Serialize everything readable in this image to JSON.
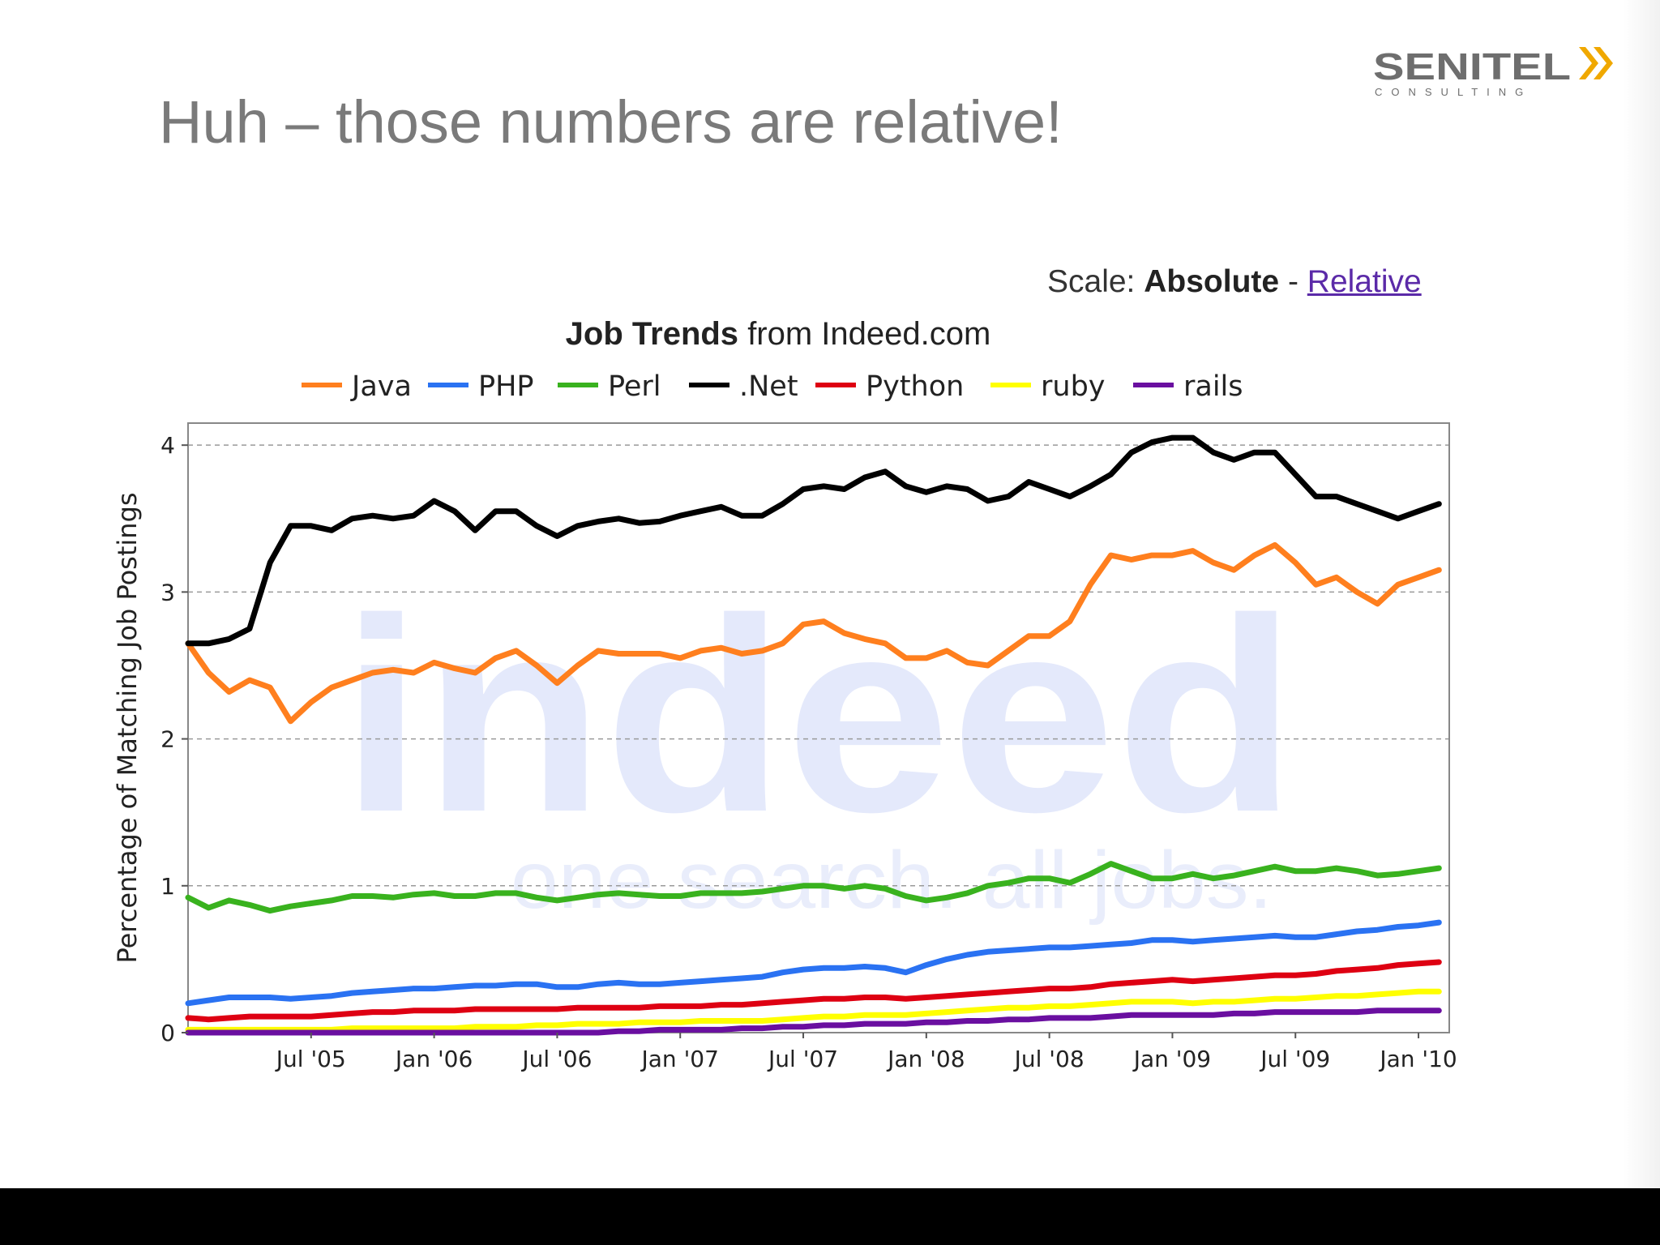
{
  "slide": {
    "title": "Huh – those numbers are relative!",
    "logo": {
      "name": "SENITEL",
      "tagline": "CONSULTING",
      "accent_color": "#f0a800",
      "text_color": "#6e6e6e"
    }
  },
  "scale": {
    "label": "Scale:",
    "absolute": "Absolute",
    "separator": "-",
    "relative": "Relative"
  },
  "chart_header": {
    "title_bold": "Job Trends",
    "title_rest": "from Indeed.com"
  },
  "watermark": {
    "brand": "indeed",
    "tagline": "one search. all jobs."
  },
  "chart_data": {
    "type": "line",
    "title": "Job Trends from Indeed.com",
    "xlabel": "",
    "ylabel": "Percentage of Matching Job Postings",
    "ylim": [
      0,
      4.15
    ],
    "yticks": [
      0,
      1,
      2,
      3,
      4
    ],
    "grid": "horizontal dashed",
    "legend_position": "top",
    "x_start": "Jan '05",
    "x_end": "Feb '10",
    "x_tick_labels": [
      "Jul '05",
      "Jan '06",
      "Jul '06",
      "Jan '07",
      "Jul '07",
      "Jan '08",
      "Jul '08",
      "Jan '09",
      "Jul '09",
      "Jan '10"
    ],
    "x_tick_months": [
      6,
      12,
      18,
      24,
      30,
      36,
      42,
      48,
      54,
      60
    ],
    "months": [
      0,
      1,
      2,
      3,
      4,
      5,
      6,
      7,
      8,
      9,
      10,
      11,
      12,
      13,
      14,
      15,
      16,
      17,
      18,
      19,
      20,
      21,
      22,
      23,
      24,
      25,
      26,
      27,
      28,
      29,
      30,
      31,
      32,
      33,
      34,
      35,
      36,
      37,
      38,
      39,
      40,
      41,
      42,
      43,
      44,
      45,
      46,
      47,
      48,
      49,
      50,
      51,
      52,
      53,
      54,
      55,
      56,
      57,
      58,
      59,
      60,
      61
    ],
    "series": [
      {
        "name": "Java",
        "color": "#ff7f1e",
        "values": [
          2.65,
          2.45,
          2.32,
          2.4,
          2.35,
          2.12,
          2.25,
          2.35,
          2.4,
          2.45,
          2.47,
          2.45,
          2.52,
          2.48,
          2.45,
          2.55,
          2.6,
          2.5,
          2.38,
          2.5,
          2.6,
          2.58,
          2.58,
          2.58,
          2.55,
          2.6,
          2.62,
          2.58,
          2.6,
          2.65,
          2.78,
          2.8,
          2.72,
          2.68,
          2.65,
          2.55,
          2.55,
          2.6,
          2.52,
          2.5,
          2.6,
          2.7,
          2.7,
          2.8,
          3.05,
          3.25,
          3.22,
          3.25,
          3.25,
          3.28,
          3.2,
          3.15,
          3.25,
          3.32,
          3.2,
          3.05,
          3.1,
          3.0,
          2.92,
          3.05,
          3.1,
          3.15
        ]
      },
      {
        "name": "PHP",
        "color": "#2a72f2",
        "values": [
          0.2,
          0.22,
          0.24,
          0.24,
          0.24,
          0.23,
          0.24,
          0.25,
          0.27,
          0.28,
          0.29,
          0.3,
          0.3,
          0.31,
          0.32,
          0.32,
          0.33,
          0.33,
          0.31,
          0.31,
          0.33,
          0.34,
          0.33,
          0.33,
          0.34,
          0.35,
          0.36,
          0.37,
          0.38,
          0.41,
          0.43,
          0.44,
          0.44,
          0.45,
          0.44,
          0.41,
          0.46,
          0.5,
          0.53,
          0.55,
          0.56,
          0.57,
          0.58,
          0.58,
          0.59,
          0.6,
          0.61,
          0.63,
          0.63,
          0.62,
          0.63,
          0.64,
          0.65,
          0.66,
          0.65,
          0.65,
          0.67,
          0.69,
          0.7,
          0.72,
          0.73,
          0.75
        ]
      },
      {
        "name": "Perl",
        "color": "#39b21e",
        "values": [
          0.92,
          0.85,
          0.9,
          0.87,
          0.83,
          0.86,
          0.88,
          0.9,
          0.93,
          0.93,
          0.92,
          0.94,
          0.95,
          0.93,
          0.93,
          0.95,
          0.95,
          0.92,
          0.9,
          0.92,
          0.94,
          0.95,
          0.94,
          0.93,
          0.93,
          0.95,
          0.95,
          0.95,
          0.96,
          0.98,
          1.0,
          1.0,
          0.98,
          1.0,
          0.98,
          0.93,
          0.9,
          0.92,
          0.95,
          1.0,
          1.02,
          1.05,
          1.05,
          1.02,
          1.08,
          1.15,
          1.1,
          1.05,
          1.05,
          1.08,
          1.05,
          1.07,
          1.1,
          1.13,
          1.1,
          1.1,
          1.12,
          1.1,
          1.07,
          1.08,
          1.1,
          1.12
        ]
      },
      {
        "name": ".Net",
        "color": "#000000",
        "values": [
          2.65,
          2.65,
          2.68,
          2.75,
          3.2,
          3.45,
          3.45,
          3.42,
          3.5,
          3.52,
          3.5,
          3.52,
          3.62,
          3.55,
          3.42,
          3.55,
          3.55,
          3.45,
          3.38,
          3.45,
          3.48,
          3.5,
          3.47,
          3.48,
          3.52,
          3.55,
          3.58,
          3.52,
          3.52,
          3.6,
          3.7,
          3.72,
          3.7,
          3.78,
          3.82,
          3.72,
          3.68,
          3.72,
          3.7,
          3.62,
          3.65,
          3.75,
          3.7,
          3.65,
          3.72,
          3.8,
          3.95,
          4.02,
          4.05,
          4.05,
          3.95,
          3.9,
          3.95,
          3.95,
          3.8,
          3.65,
          3.65,
          3.6,
          3.55,
          3.5,
          3.55,
          3.6
        ]
      },
      {
        "name": "Python",
        "color": "#de0012",
        "values": [
          0.1,
          0.09,
          0.1,
          0.11,
          0.11,
          0.11,
          0.11,
          0.12,
          0.13,
          0.14,
          0.14,
          0.15,
          0.15,
          0.15,
          0.16,
          0.16,
          0.16,
          0.16,
          0.16,
          0.17,
          0.17,
          0.17,
          0.17,
          0.18,
          0.18,
          0.18,
          0.19,
          0.19,
          0.2,
          0.21,
          0.22,
          0.23,
          0.23,
          0.24,
          0.24,
          0.23,
          0.24,
          0.25,
          0.26,
          0.27,
          0.28,
          0.29,
          0.3,
          0.3,
          0.31,
          0.33,
          0.34,
          0.35,
          0.36,
          0.35,
          0.36,
          0.37,
          0.38,
          0.39,
          0.39,
          0.4,
          0.42,
          0.43,
          0.44,
          0.46,
          0.47,
          0.48
        ]
      },
      {
        "name": "ruby",
        "color": "#ffff00",
        "values": [
          0.02,
          0.02,
          0.02,
          0.02,
          0.02,
          0.02,
          0.02,
          0.02,
          0.03,
          0.03,
          0.03,
          0.03,
          0.03,
          0.03,
          0.04,
          0.04,
          0.04,
          0.05,
          0.05,
          0.06,
          0.06,
          0.06,
          0.07,
          0.07,
          0.07,
          0.08,
          0.08,
          0.08,
          0.08,
          0.09,
          0.1,
          0.11,
          0.11,
          0.12,
          0.12,
          0.12,
          0.13,
          0.14,
          0.15,
          0.16,
          0.17,
          0.17,
          0.18,
          0.18,
          0.19,
          0.2,
          0.21,
          0.21,
          0.21,
          0.2,
          0.21,
          0.21,
          0.22,
          0.23,
          0.23,
          0.24,
          0.25,
          0.25,
          0.26,
          0.27,
          0.28,
          0.28
        ]
      },
      {
        "name": "rails",
        "color": "#6a0fa0",
        "values": [
          0.0,
          0.0,
          0.0,
          0.0,
          0.0,
          0.0,
          0.0,
          0.0,
          0.0,
          0.0,
          0.0,
          0.0,
          0.0,
          0.0,
          0.0,
          0.0,
          0.0,
          0.0,
          0.0,
          0.0,
          0.0,
          0.01,
          0.01,
          0.02,
          0.02,
          0.02,
          0.02,
          0.03,
          0.03,
          0.04,
          0.04,
          0.05,
          0.05,
          0.06,
          0.06,
          0.06,
          0.07,
          0.07,
          0.08,
          0.08,
          0.09,
          0.09,
          0.1,
          0.1,
          0.1,
          0.11,
          0.12,
          0.12,
          0.12,
          0.12,
          0.12,
          0.13,
          0.13,
          0.14,
          0.14,
          0.14,
          0.14,
          0.14,
          0.15,
          0.15,
          0.15,
          0.15
        ]
      }
    ]
  }
}
